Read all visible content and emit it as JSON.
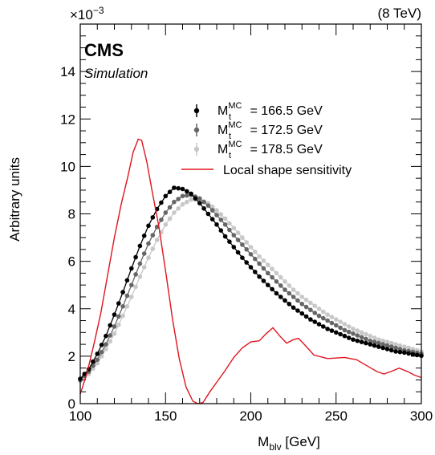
{
  "chart_data": {
    "type": "line",
    "experiment": "CMS",
    "label": "Simulation",
    "energy": "(8 TeV)",
    "exponent": "×10",
    "exponent_power": "−3",
    "xlabel_main": "M",
    "xlabel_sub": "blv",
    "xlabel_unit": " [GeV]",
    "ylabel": "Arbitrary units",
    "xlim": [
      100,
      300
    ],
    "ylim": [
      0,
      16
    ],
    "y_scale_note": "values in units of 10^-3",
    "x_ticks": [
      "100",
      "150",
      "200",
      "250",
      "300"
    ],
    "y_ticks": [
      "0",
      "2",
      "4",
      "6",
      "8",
      "10",
      "12",
      "14"
    ],
    "x_tick_values": [
      100,
      150,
      200,
      250,
      300
    ],
    "y_tick_values": [
      0,
      2,
      4,
      6,
      8,
      10,
      12,
      14
    ],
    "legend_position": "upper-right",
    "series": [
      {
        "name": "M_t^MC = 166.5 GeV",
        "label_main": "M",
        "label_sub": "t",
        "label_sup": "MC",
        "label_value": " = 166.5 GeV",
        "color": "#000000",
        "style": "markers-line",
        "points": [
          [
            100,
            1.05
          ],
          [
            105,
            1.45
          ],
          [
            110,
            2.1
          ],
          [
            115,
            2.85
          ],
          [
            120,
            3.75
          ],
          [
            125,
            4.7
          ],
          [
            130,
            5.7
          ],
          [
            135,
            6.65
          ],
          [
            140,
            7.5
          ],
          [
            145,
            8.2
          ],
          [
            150,
            8.75
          ],
          [
            155,
            9.1
          ],
          [
            160,
            9.05
          ],
          [
            165,
            8.85
          ],
          [
            170,
            8.45
          ],
          [
            175,
            8.0
          ],
          [
            180,
            7.55
          ],
          [
            185,
            7.05
          ],
          [
            190,
            6.6
          ],
          [
            195,
            6.15
          ],
          [
            200,
            5.75
          ],
          [
            205,
            5.35
          ],
          [
            210,
            5.0
          ],
          [
            215,
            4.65
          ],
          [
            220,
            4.35
          ],
          [
            225,
            4.05
          ],
          [
            230,
            3.8
          ],
          [
            235,
            3.55
          ],
          [
            240,
            3.35
          ],
          [
            245,
            3.15
          ],
          [
            250,
            3.0
          ],
          [
            255,
            2.85
          ],
          [
            260,
            2.7
          ],
          [
            265,
            2.6
          ],
          [
            270,
            2.5
          ],
          [
            275,
            2.4
          ],
          [
            280,
            2.3
          ],
          [
            285,
            2.2
          ],
          [
            290,
            2.15
          ],
          [
            295,
            2.08
          ],
          [
            300,
            2.02
          ]
        ]
      },
      {
        "name": "M_t^MC = 172.5 GeV",
        "label_main": "M",
        "label_sub": "t",
        "label_sup": "MC",
        "label_value": " = 172.5 GeV",
        "color": "#666666",
        "style": "markers-line",
        "points": [
          [
            100,
            1.0
          ],
          [
            105,
            1.35
          ],
          [
            110,
            1.85
          ],
          [
            115,
            2.5
          ],
          [
            120,
            3.25
          ],
          [
            125,
            4.1
          ],
          [
            130,
            5.0
          ],
          [
            135,
            5.9
          ],
          [
            140,
            6.75
          ],
          [
            145,
            7.45
          ],
          [
            150,
            8.05
          ],
          [
            155,
            8.5
          ],
          [
            160,
            8.75
          ],
          [
            165,
            8.8
          ],
          [
            170,
            8.65
          ],
          [
            175,
            8.35
          ],
          [
            180,
            7.95
          ],
          [
            185,
            7.55
          ],
          [
            190,
            7.1
          ],
          [
            195,
            6.7
          ],
          [
            200,
            6.3
          ],
          [
            205,
            5.9
          ],
          [
            210,
            5.5
          ],
          [
            215,
            5.15
          ],
          [
            220,
            4.8
          ],
          [
            225,
            4.5
          ],
          [
            230,
            4.2
          ],
          [
            235,
            3.95
          ],
          [
            240,
            3.7
          ],
          [
            245,
            3.5
          ],
          [
            250,
            3.3
          ],
          [
            255,
            3.1
          ],
          [
            260,
            2.95
          ],
          [
            265,
            2.8
          ],
          [
            270,
            2.65
          ],
          [
            275,
            2.55
          ],
          [
            280,
            2.45
          ],
          [
            285,
            2.35
          ],
          [
            290,
            2.25
          ],
          [
            295,
            2.18
          ],
          [
            300,
            2.1
          ]
        ]
      },
      {
        "name": "M_t^MC = 178.5 GeV",
        "label_main": "M",
        "label_sub": "t",
        "label_sup": "MC",
        "label_value": " = 178.5 GeV",
        "color": "#c8c8c8",
        "style": "markers-line",
        "points": [
          [
            100,
            0.95
          ],
          [
            105,
            1.25
          ],
          [
            110,
            1.7
          ],
          [
            115,
            2.3
          ],
          [
            120,
            2.95
          ],
          [
            125,
            3.7
          ],
          [
            130,
            4.5
          ],
          [
            135,
            5.35
          ],
          [
            140,
            6.15
          ],
          [
            145,
            6.9
          ],
          [
            150,
            7.55
          ],
          [
            155,
            8.05
          ],
          [
            160,
            8.4
          ],
          [
            165,
            8.6
          ],
          [
            170,
            8.6
          ],
          [
            175,
            8.45
          ],
          [
            180,
            8.15
          ],
          [
            185,
            7.8
          ],
          [
            190,
            7.4
          ],
          [
            195,
            7.0
          ],
          [
            200,
            6.6
          ],
          [
            205,
            6.2
          ],
          [
            210,
            5.85
          ],
          [
            215,
            5.5
          ],
          [
            220,
            5.15
          ],
          [
            225,
            4.8
          ],
          [
            230,
            4.5
          ],
          [
            235,
            4.25
          ],
          [
            240,
            4.0
          ],
          [
            245,
            3.75
          ],
          [
            250,
            3.55
          ],
          [
            255,
            3.35
          ],
          [
            260,
            3.15
          ],
          [
            265,
            3.0
          ],
          [
            270,
            2.85
          ],
          [
            275,
            2.7
          ],
          [
            280,
            2.6
          ],
          [
            285,
            2.5
          ],
          [
            290,
            2.4
          ],
          [
            295,
            2.3
          ],
          [
            300,
            2.2
          ]
        ]
      },
      {
        "name": "Local shape sensitivity",
        "label_value": "Local shape sensitivity",
        "color": "#e0141e",
        "style": "line",
        "points": [
          [
            100,
            0.4
          ],
          [
            104,
            1.3
          ],
          [
            108,
            2.5
          ],
          [
            112,
            3.8
          ],
          [
            116,
            5.4
          ],
          [
            120,
            7.0
          ],
          [
            124,
            8.4
          ],
          [
            128,
            9.6
          ],
          [
            131,
            10.6
          ],
          [
            134,
            11.15
          ],
          [
            136,
            11.1
          ],
          [
            139,
            10.2
          ],
          [
            142,
            9.0
          ],
          [
            146,
            7.5
          ],
          [
            150,
            5.6
          ],
          [
            154,
            3.6
          ],
          [
            158,
            1.9
          ],
          [
            162,
            0.7
          ],
          [
            166,
            0.1
          ],
          [
            169,
            0.0
          ],
          [
            172,
            0.05
          ],
          [
            176,
            0.5
          ],
          [
            180,
            0.9
          ],
          [
            185,
            1.4
          ],
          [
            190,
            1.95
          ],
          [
            195,
            2.35
          ],
          [
            200,
            2.6
          ],
          [
            205,
            2.65
          ],
          [
            209,
            2.95
          ],
          [
            213,
            3.2
          ],
          [
            217,
            2.85
          ],
          [
            221,
            2.55
          ],
          [
            225,
            2.7
          ],
          [
            228,
            2.75
          ],
          [
            232,
            2.45
          ],
          [
            237,
            2.05
          ],
          [
            245,
            1.9
          ],
          [
            255,
            1.95
          ],
          [
            262,
            1.85
          ],
          [
            268,
            1.6
          ],
          [
            274,
            1.35
          ],
          [
            278,
            1.25
          ],
          [
            282,
            1.35
          ],
          [
            287,
            1.5
          ],
          [
            292,
            1.35
          ],
          [
            296,
            1.2
          ],
          [
            300,
            1.1
          ]
        ]
      }
    ]
  }
}
